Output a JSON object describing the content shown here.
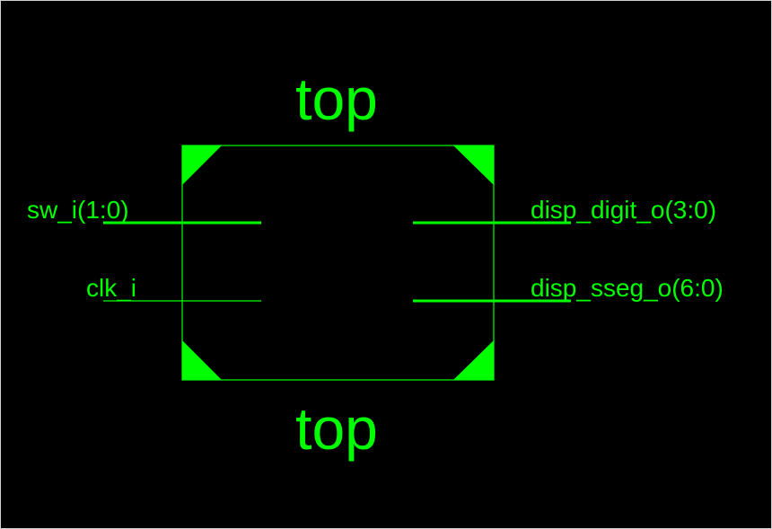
{
  "colors": {
    "background": "#000000",
    "foreground": "#00ff00",
    "frame": "#d0d0d0"
  },
  "block": {
    "name_top": "top",
    "name_bottom": "top"
  },
  "ports": {
    "left": [
      {
        "label": "sw_i(1:0)",
        "bus": true
      },
      {
        "label": "clk_i",
        "bus": false
      }
    ],
    "right": [
      {
        "label": "disp_digit_o(3:0)",
        "bus": true
      },
      {
        "label": "disp_sseg_o(6:0)",
        "bus": true
      }
    ]
  }
}
